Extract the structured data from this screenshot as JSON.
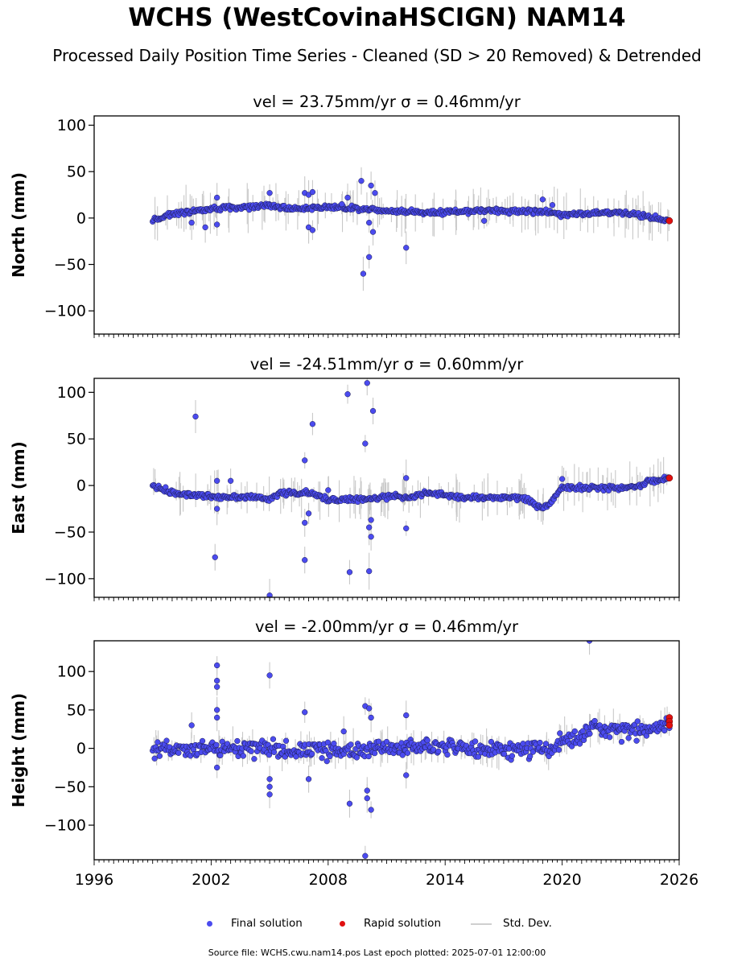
{
  "title": "WCHS (WestCovinaHSCIGN) NAM14",
  "subtitle": "Processed Daily Position Time Series - Cleaned (SD > 20 Removed) & Detrended",
  "legend": {
    "final": "Final solution",
    "rapid": "Rapid solution",
    "std": "Std. Dev."
  },
  "footer": "Source file: WCHS.cwu.nam14.pos  Last epoch plotted: 2025-07-01 12:00:00",
  "colors": {
    "final": "#4b4bef",
    "rapid": "#e01010",
    "std": "#c8c8c8",
    "edge": "#1a1a4a"
  },
  "chart_data": [
    {
      "type": "scatter",
      "title": "vel = 23.75mm/yr   σ = 0.46mm/yr",
      "ylabel": "North (mm)",
      "xlabel": "",
      "xlim": [
        1996,
        2026
      ],
      "ylim": [
        -125,
        110
      ],
      "yticks": [
        100,
        50,
        0,
        -50,
        -100
      ],
      "yticklabels": [
        "100",
        "50",
        "0",
        "−50",
        "−100"
      ],
      "xticks": [],
      "xticklabels": [],
      "trend": [
        [
          1999.0,
          -2
        ],
        [
          2000.0,
          4
        ],
        [
          2002.0,
          10
        ],
        [
          2004.0,
          12
        ],
        [
          2005.0,
          14
        ],
        [
          2006.0,
          10
        ],
        [
          2008.0,
          12
        ],
        [
          2010.0,
          10
        ],
        [
          2011.0,
          8
        ],
        [
          2013.0,
          6
        ],
        [
          2016.0,
          8
        ],
        [
          2019.0,
          7
        ],
        [
          2020.0,
          4
        ],
        [
          2023.0,
          6
        ],
        [
          2024.0,
          3
        ],
        [
          2025.5,
          -3
        ]
      ],
      "outliers": [
        [
          2001.0,
          -5
        ],
        [
          2001.7,
          -10
        ],
        [
          2002.3,
          22
        ],
        [
          2002.3,
          -7
        ],
        [
          2005.0,
          27
        ],
        [
          2006.8,
          27
        ],
        [
          2007.0,
          25
        ],
        [
          2007.2,
          28
        ],
        [
          2007.0,
          -10
        ],
        [
          2007.2,
          -13
        ],
        [
          2008.7,
          15
        ],
        [
          2009.0,
          22
        ],
        [
          2009.7,
          40
        ],
        [
          2009.8,
          -60
        ],
        [
          2010.1,
          -42
        ],
        [
          2010.2,
          35
        ],
        [
          2010.3,
          -15
        ],
        [
          2010.4,
          27
        ],
        [
          2010.1,
          -5
        ],
        [
          2012.0,
          -32
        ],
        [
          2016.0,
          -3
        ],
        [
          2019.0,
          20
        ],
        [
          2019.5,
          14
        ]
      ],
      "rapid": [
        [
          2025.5,
          -3
        ]
      ]
    },
    {
      "type": "scatter",
      "title": "vel = -24.51mm/yr   σ = 0.60mm/yr",
      "ylabel": "East (mm)",
      "xlabel": "",
      "xlim": [
        1996,
        2026
      ],
      "ylim": [
        -120,
        115
      ],
      "yticks": [
        100,
        50,
        0,
        -50,
        -100
      ],
      "yticklabels": [
        "100",
        "50",
        "0",
        "−50",
        "−100"
      ],
      "xticks": [],
      "xticklabels": [],
      "trend": [
        [
          1999.0,
          0
        ],
        [
          2000.0,
          -8
        ],
        [
          2002.0,
          -12
        ],
        [
          2004.0,
          -12
        ],
        [
          2005.0,
          -15
        ],
        [
          2005.5,
          -8
        ],
        [
          2007.0,
          -8
        ],
        [
          2008.0,
          -15
        ],
        [
          2010.0,
          -15
        ],
        [
          2011.0,
          -12
        ],
        [
          2012.5,
          -12
        ],
        [
          2013.0,
          -8
        ],
        [
          2015.0,
          -13
        ],
        [
          2018.0,
          -13
        ],
        [
          2019.0,
          -25
        ],
        [
          2019.5,
          -15
        ],
        [
          2020.0,
          -2
        ],
        [
          2022.0,
          -3
        ],
        [
          2023.5,
          -2
        ],
        [
          2024.5,
          4
        ],
        [
          2025.5,
          8
        ]
      ],
      "outliers": [
        [
          2001.2,
          74
        ],
        [
          2002.2,
          -77
        ],
        [
          2002.3,
          -25
        ],
        [
          2002.3,
          5
        ],
        [
          2003.0,
          5
        ],
        [
          2005.0,
          -118
        ],
        [
          2006.8,
          27
        ],
        [
          2006.8,
          -40
        ],
        [
          2007.0,
          -30
        ],
        [
          2006.8,
          -80
        ],
        [
          2007.2,
          66
        ],
        [
          2008.0,
          -5
        ],
        [
          2009.0,
          98
        ],
        [
          2009.1,
          -93
        ],
        [
          2009.9,
          45
        ],
        [
          2010.0,
          110
        ],
        [
          2010.1,
          -92
        ],
        [
          2010.1,
          -45
        ],
        [
          2010.2,
          -55
        ],
        [
          2010.3,
          80
        ],
        [
          2010.2,
          -37
        ],
        [
          2012.0,
          8
        ],
        [
          2012.0,
          -46
        ],
        [
          2020.0,
          7
        ]
      ],
      "rapid": [
        [
          2025.5,
          8
        ]
      ]
    },
    {
      "type": "scatter",
      "title": "vel = -2.00mm/yr   σ = 0.46mm/yr",
      "ylabel": "Height (mm)",
      "xlabel": "",
      "xlim": [
        1996,
        2026
      ],
      "ylim": [
        -145,
        140
      ],
      "yticks": [
        100,
        50,
        0,
        -50,
        -100
      ],
      "yticklabels": [
        "100",
        "50",
        "0",
        "−50",
        "−100"
      ],
      "xticks": [
        1996,
        2002,
        2008,
        2014,
        2020,
        2026
      ],
      "xticklabels": [
        "1996",
        "2002",
        "2008",
        "2014",
        "2020",
        "2026"
      ],
      "trend": [
        [
          1999.0,
          0
        ],
        [
          2002.0,
          0
        ],
        [
          2004.0,
          0
        ],
        [
          2006.0,
          -3
        ],
        [
          2008.0,
          -2
        ],
        [
          2010.0,
          -3
        ],
        [
          2011.0,
          0
        ],
        [
          2013.0,
          2
        ],
        [
          2016.0,
          0
        ],
        [
          2018.0,
          -2
        ],
        [
          2019.5,
          -2
        ],
        [
          2020.0,
          12
        ],
        [
          2021.0,
          15
        ],
        [
          2021.5,
          30
        ],
        [
          2022.0,
          22
        ],
        [
          2024.0,
          25
        ],
        [
          2025.5,
          32
        ]
      ],
      "outliers": [
        [
          2001.0,
          30
        ],
        [
          2002.3,
          108
        ],
        [
          2002.3,
          88
        ],
        [
          2002.3,
          80
        ],
        [
          2002.3,
          50
        ],
        [
          2002.3,
          40
        ],
        [
          2002.3,
          -25
        ],
        [
          2005.0,
          95
        ],
        [
          2005.0,
          -40
        ],
        [
          2005.0,
          -60
        ],
        [
          2005.0,
          -50
        ],
        [
          2006.8,
          47
        ],
        [
          2007.0,
          -40
        ],
        [
          2008.8,
          22
        ],
        [
          2009.1,
          -72
        ],
        [
          2009.9,
          55
        ],
        [
          2009.9,
          -140
        ],
        [
          2010.1,
          52
        ],
        [
          2010.2,
          40
        ],
        [
          2010.2,
          -80
        ],
        [
          2010.0,
          -65
        ],
        [
          2010.0,
          -55
        ],
        [
          2012.0,
          43
        ],
        [
          2012.0,
          -35
        ],
        [
          2021.4,
          140
        ]
      ],
      "rapid": [
        [
          2025.5,
          40
        ],
        [
          2025.5,
          35
        ],
        [
          2025.5,
          30
        ]
      ]
    }
  ]
}
